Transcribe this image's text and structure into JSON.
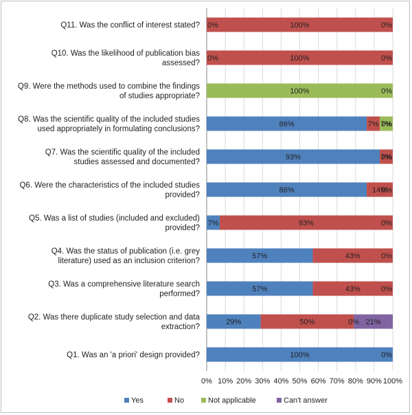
{
  "chart_data": {
    "type": "bar",
    "orientation": "horizontal",
    "stacked": true,
    "percent": true,
    "categories": [
      "Q11. Was the conflict of interest stated?",
      "Q10. Was the likelihood of publication bias assessed?",
      "Q9. Were the methods used to combine the findings of studies appropriate?",
      "Q8. Was the scientific quality of the included studies used appropriately in formulating conclusions?",
      "Q7. Was the scientific quality of the included studies assessed and documented?",
      "Q6. Were the characteristics of the included studies provided?",
      "Q5. Was a list of studies (included and excluded) provided?",
      "Q4. Was the status of publication (i.e. grey literature) used as an inclusion criterion?",
      "Q3. Was a comprehensive literature search performed?",
      "Q2. Was there duplicate study selection and data extraction?",
      "Q1. Was an 'a priori' design provided?"
    ],
    "category_lines": [
      [
        "Q11. Was the conflict of interest stated?"
      ],
      [
        "Q10. Was the likelihood of publication bias",
        "assessed?"
      ],
      [
        "Q9. Were the methods used to combine the findings",
        "of studies appropriate?"
      ],
      [
        "Q8. Was the scientific quality of the included studies",
        "used appropriately in formulating conclusions?"
      ],
      [
        "Q7. Was the scientific quality of the included",
        "studies assessed and documented?"
      ],
      [
        "Q6. Were the characteristics of the included studies",
        "provided?"
      ],
      [
        "Q5. Was a list of studies (included and excluded)",
        "provided?"
      ],
      [
        "Q4. Was the status of publication (i.e. grey",
        "literature) used as an inclusion criterion?"
      ],
      [
        "Q3. Was a comprehensive literature search",
        "performed?"
      ],
      [
        "Q2. Was there duplicate study selection and data",
        "extraction?"
      ],
      [
        "Q1. Was an 'a priori' design provided?"
      ]
    ],
    "series": [
      {
        "name": "Yes",
        "color": "#4f81bd",
        "values": [
          0,
          0,
          0,
          86,
          93,
          86,
          7,
          57,
          57,
          29,
          100
        ]
      },
      {
        "name": "No",
        "color": "#c0504d",
        "values": [
          100,
          100,
          0,
          7,
          7,
          14,
          93,
          43,
          43,
          50,
          0
        ]
      },
      {
        "name": "Not applicable",
        "color": "#9bbb59",
        "values": [
          0,
          0,
          100,
          7,
          0,
          0,
          0,
          0,
          0,
          0,
          0
        ]
      },
      {
        "name": "Can't answer",
        "color": "#8064a2",
        "values": [
          0,
          0,
          0,
          0,
          0,
          0,
          0,
          0,
          0,
          21,
          0
        ]
      }
    ],
    "data_labels": [
      [
        {
          "text": "0%",
          "series": 0
        },
        {
          "text": "100%",
          "series": 1
        },
        {
          "text": "0%",
          "series": 3
        }
      ],
      [
        {
          "text": "0%",
          "series": 0
        },
        {
          "text": "100%",
          "series": 1
        },
        {
          "text": "0%",
          "series": 3
        }
      ],
      [
        {
          "text": "100%",
          "series": 2
        },
        {
          "text": "0%",
          "series": 3
        }
      ],
      [
        {
          "text": "86%",
          "series": 0
        },
        {
          "text": "7%",
          "series": 1
        },
        {
          "text": "7%",
          "series": 2
        },
        {
          "text": "0%",
          "series": 3
        }
      ],
      [
        {
          "text": "93%",
          "series": 0
        },
        {
          "text": "7%",
          "series": 1
        },
        {
          "text": "0%",
          "series": 3
        }
      ],
      [
        {
          "text": "86%",
          "series": 0
        },
        {
          "text": "14%",
          "series": 1
        },
        {
          "text": "0%",
          "series": 3
        }
      ],
      [
        {
          "text": "7%",
          "series": 0
        },
        {
          "text": "93%",
          "series": 1
        },
        {
          "text": "0%",
          "series": 3
        }
      ],
      [
        {
          "text": "57%",
          "series": 0
        },
        {
          "text": "43%",
          "series": 1
        },
        {
          "text": "0%",
          "series": 3
        }
      ],
      [
        {
          "text": "57%",
          "series": 0
        },
        {
          "text": "43%",
          "series": 1
        },
        {
          "text": "0%",
          "series": 3
        }
      ],
      [
        {
          "text": "29%",
          "series": 0
        },
        {
          "text": "50%",
          "series": 1
        },
        {
          "text": "0%",
          "series": 2
        },
        {
          "text": "21%",
          "series": 3
        }
      ],
      [
        {
          "text": "100%",
          "series": 0
        },
        {
          "text": "0%",
          "series": 3
        }
      ]
    ],
    "x_ticks": [
      "0%",
      "10%",
      "20%",
      "30%",
      "40%",
      "50%",
      "60%",
      "70%",
      "80%",
      "90%",
      "100%"
    ],
    "xlim": [
      0,
      100
    ],
    "grid": true,
    "legend_position": "bottom",
    "title": "",
    "xlabel": "",
    "ylabel": ""
  }
}
